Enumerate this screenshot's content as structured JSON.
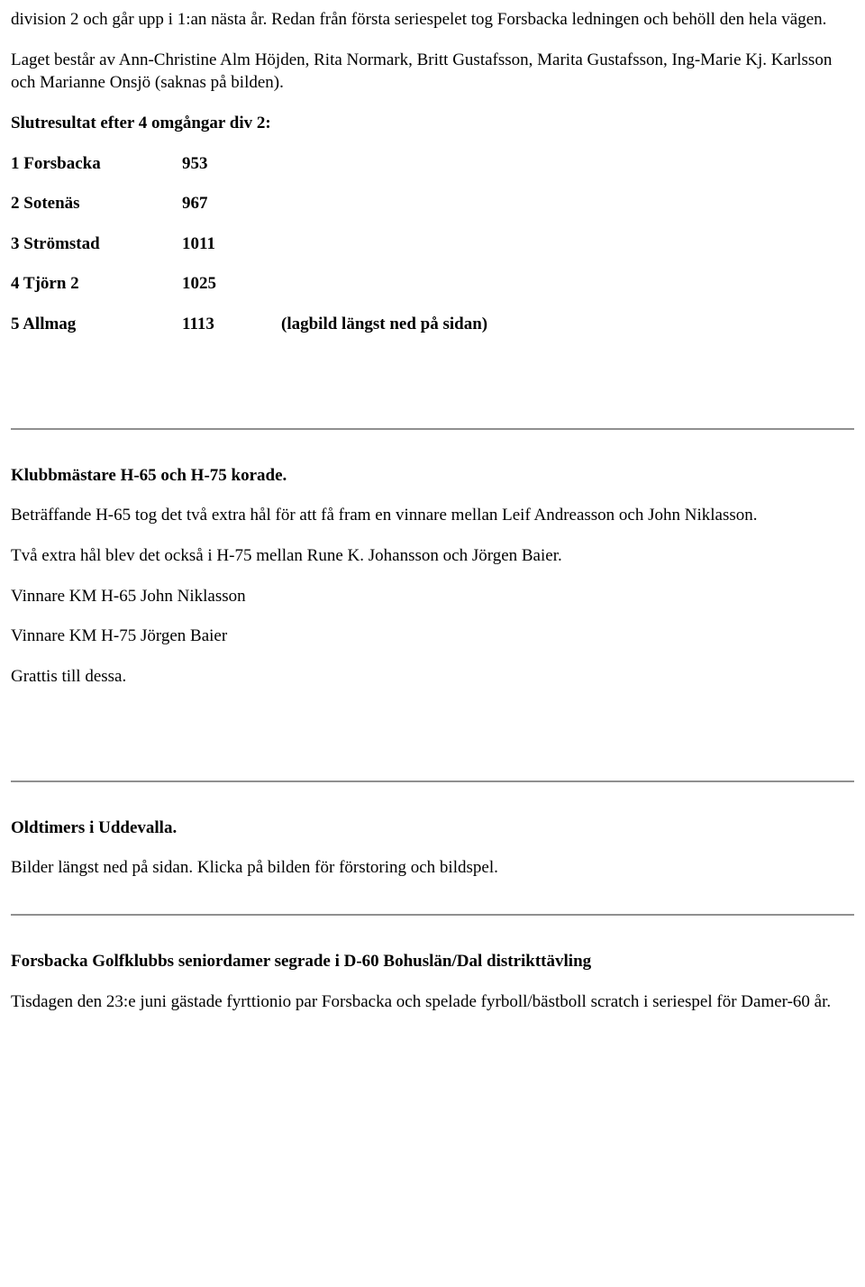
{
  "intro": {
    "p1": "division 2 och går upp i 1:an nästa år. Redan från första seriespelet tog Forsbacka ledningen och behöll den hela vägen.",
    "p2": "Laget består av Ann-Christine Alm Höjden, Rita Normark, Britt Gustafsson, Marita Gustafsson, Ing-Marie Kj. Karlsson och Marianne Onsjö (saknas på bilden)."
  },
  "results": {
    "title": "Slutresultat efter 4 omgångar div 2:",
    "rows": [
      {
        "label": "1 Forsbacka",
        "value": "953",
        "note": ""
      },
      {
        "label": "2 Sotenäs",
        "value": "967",
        "note": ""
      },
      {
        "label": "3 Strömstad",
        "value": "1011",
        "note": ""
      },
      {
        "label": "4 Tjörn 2",
        "value": "1025",
        "note": ""
      },
      {
        "label": "5 Allmag",
        "value": "1113",
        "note": "(lagbild längst ned på sidan)"
      }
    ]
  },
  "klubb": {
    "heading": "Klubbmästare H-65 och H-75 korade.",
    "p1": "Beträffande H-65 tog det två extra hål för att få fram en vinnare mellan Leif Andreasson och John Niklasson.",
    "p2": "Två extra hål blev det också i H-75 mellan Rune K. Johansson och Jörgen Baier.",
    "p3": "Vinnare KM H-65 John Niklasson",
    "p4": "Vinnare KM H-75 Jörgen Baier",
    "p5": "Grattis till dessa."
  },
  "oldtimers": {
    "heading": "Oldtimers i Uddevalla.",
    "p1": "Bilder längst ned på sidan. Klicka på bilden för förstoring och bildspel."
  },
  "forsbacka": {
    "heading": "Forsbacka Golfklubbs seniordamer segrade i D-60 Bohuslän/Dal distrikttävling",
    "p1": "Tisdagen den 23:e juni gästade fyrttionio par Forsbacka och spelade fyrboll/bästboll scratch i seriespel för Damer-60 år."
  }
}
